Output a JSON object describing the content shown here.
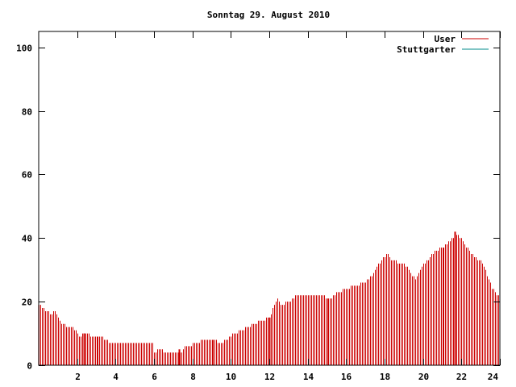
{
  "chart_data": {
    "type": "bar",
    "title": "Sonntag 29. August 2010",
    "xlabel": "",
    "ylabel": "",
    "xlim": [
      0,
      24
    ],
    "ylim": [
      0,
      105
    ],
    "x_ticks": [
      2,
      4,
      6,
      8,
      10,
      12,
      14,
      16,
      18,
      20,
      22,
      24
    ],
    "x_tick_labels": [
      "2",
      "4",
      "6",
      "8",
      "10",
      "12",
      "14",
      "16",
      "18",
      "20",
      "22",
      "24"
    ],
    "y_ticks": [
      0,
      20,
      40,
      60,
      80,
      100
    ],
    "y_tick_labels": [
      "0",
      "20",
      "40",
      "60",
      "80",
      "100"
    ],
    "grid": false,
    "legend_position": "top-right",
    "series": [
      {
        "name": "User",
        "color": "#cc0000",
        "keypoints": [
          [
            0.0,
            19
          ],
          [
            0.4,
            17
          ],
          [
            0.6,
            16
          ],
          [
            0.8,
            17
          ],
          [
            1.0,
            15
          ],
          [
            1.2,
            13
          ],
          [
            1.6,
            12
          ],
          [
            1.9,
            11
          ],
          [
            2.05,
            9
          ],
          [
            2.4,
            10
          ],
          [
            2.8,
            9
          ],
          [
            3.3,
            9
          ],
          [
            3.5,
            8
          ],
          [
            3.8,
            7
          ],
          [
            5.9,
            7
          ],
          [
            6.0,
            4
          ],
          [
            6.3,
            5
          ],
          [
            6.6,
            4
          ],
          [
            7.4,
            4
          ],
          [
            7.6,
            6
          ],
          [
            8.3,
            7
          ],
          [
            8.5,
            8
          ],
          [
            9.2,
            8
          ],
          [
            9.4,
            7
          ],
          [
            9.8,
            8
          ],
          [
            10.1,
            10
          ],
          [
            10.6,
            11
          ],
          [
            11.2,
            13
          ],
          [
            11.6,
            14
          ],
          [
            12.0,
            15
          ],
          [
            12.2,
            18
          ],
          [
            12.4,
            21
          ],
          [
            12.6,
            19
          ],
          [
            13.0,
            20
          ],
          [
            13.4,
            22
          ],
          [
            14.5,
            22
          ],
          [
            15.2,
            21
          ],
          [
            15.6,
            23
          ],
          [
            16.0,
            24
          ],
          [
            16.5,
            25
          ],
          [
            17.0,
            26
          ],
          [
            17.3,
            28
          ],
          [
            17.5,
            30
          ],
          [
            17.8,
            33
          ],
          [
            18.1,
            35
          ],
          [
            18.4,
            33
          ],
          [
            18.9,
            32
          ],
          [
            19.2,
            31
          ],
          [
            19.4,
            28
          ],
          [
            19.6,
            27
          ],
          [
            19.9,
            31
          ],
          [
            20.2,
            33
          ],
          [
            20.6,
            36
          ],
          [
            21.0,
            37
          ],
          [
            21.4,
            39
          ],
          [
            21.7,
            41
          ],
          [
            22.0,
            40
          ],
          [
            22.2,
            38
          ],
          [
            22.4,
            36
          ],
          [
            22.7,
            34
          ],
          [
            23.1,
            32
          ],
          [
            23.4,
            27
          ],
          [
            23.6,
            24
          ],
          [
            24.0,
            21
          ]
        ],
        "spikes": [
          {
            "x": 2.35,
            "y": 10
          },
          {
            "x": 7.3,
            "y": 5
          },
          {
            "x": 12.0,
            "y": 15
          },
          {
            "x": 21.65,
            "y": 42
          }
        ]
      },
      {
        "name": "Stuttgarter",
        "color": "#008b8b",
        "keypoints": [],
        "spikes": []
      }
    ]
  }
}
